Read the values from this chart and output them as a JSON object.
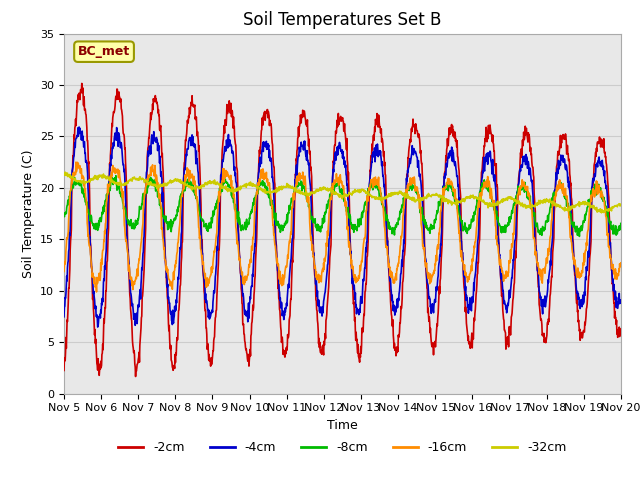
{
  "title": "Soil Temperatures Set B",
  "xlabel": "Time",
  "ylabel": "Soil Temperature (C)",
  "ylim": [
    0,
    35
  ],
  "annotation": "BC_met",
  "series_labels": [
    "-2cm",
    "-4cm",
    "-8cm",
    "-16cm",
    "-32cm"
  ],
  "series_colors": [
    "#CC0000",
    "#0000CC",
    "#00BB00",
    "#FF8C00",
    "#CCCC00"
  ],
  "series_linewidths": [
    1.2,
    1.2,
    1.2,
    1.2,
    1.2
  ],
  "grid_color": "#CCCCCC",
  "bg_color": "#E8E8E8",
  "xtick_labels": [
    "Nov 5",
    "Nov 6",
    "Nov 7",
    "Nov 8",
    "Nov 9",
    "Nov 10",
    "Nov 11",
    "Nov 12",
    "Nov 13",
    "Nov 14",
    "Nov 15",
    "Nov 16",
    "Nov 17",
    "Nov 18",
    "Nov 19",
    "Nov 20"
  ],
  "title_fontsize": 12,
  "axis_label_fontsize": 9,
  "tick_fontsize": 8,
  "legend_fontsize": 9
}
